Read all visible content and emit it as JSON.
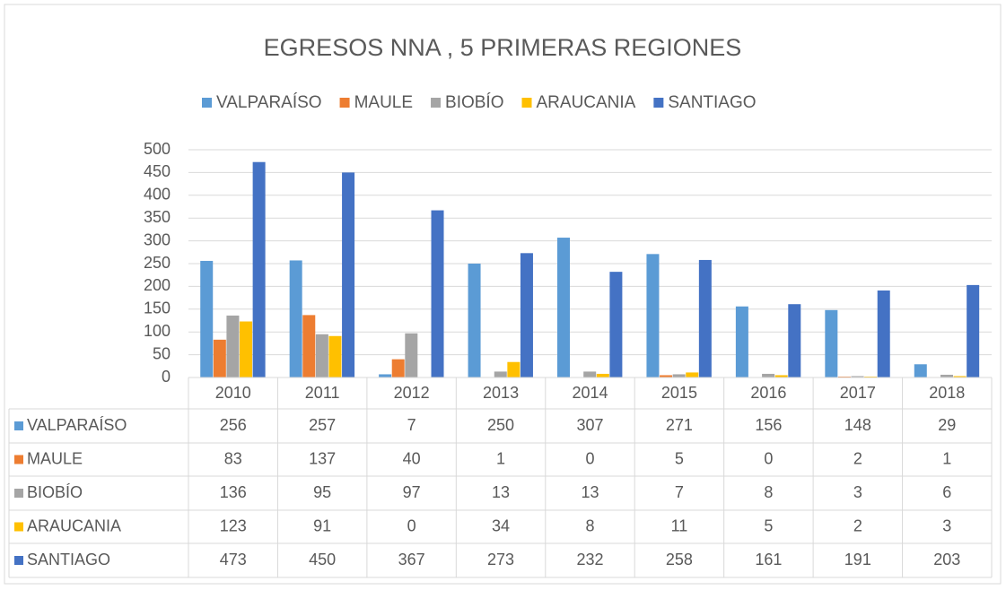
{
  "chart_data": {
    "type": "bar",
    "title": "EGRESOS NNA , 5 PRIMERAS REGIONES",
    "categories": [
      "2010",
      "2011",
      "2012",
      "2013",
      "2014",
      "2015",
      "2016",
      "2017",
      "2018"
    ],
    "series": [
      {
        "name": "VALPARAÍSO",
        "color": "#5b9bd5",
        "values": [
          256,
          257,
          7,
          250,
          307,
          271,
          156,
          148,
          29
        ]
      },
      {
        "name": "MAULE",
        "color": "#ed7d31",
        "values": [
          83,
          137,
          40,
          1,
          0,
          5,
          0,
          2,
          1
        ]
      },
      {
        "name": "BIOBÍO",
        "color": "#a5a5a5",
        "values": [
          136,
          95,
          97,
          13,
          13,
          7,
          8,
          3,
          6
        ]
      },
      {
        "name": "ARAUCANIA",
        "color": "#ffc000",
        "values": [
          123,
          91,
          0,
          34,
          8,
          11,
          5,
          2,
          3
        ]
      },
      {
        "name": "SANTIAGO",
        "color": "#4472c4",
        "values": [
          473,
          450,
          367,
          273,
          232,
          258,
          161,
          191,
          203
        ]
      }
    ],
    "ylim": [
      0,
      500
    ],
    "yticks": [
      0,
      50,
      100,
      150,
      200,
      250,
      300,
      350,
      400,
      450,
      500
    ],
    "grid": true,
    "legend": "top"
  }
}
